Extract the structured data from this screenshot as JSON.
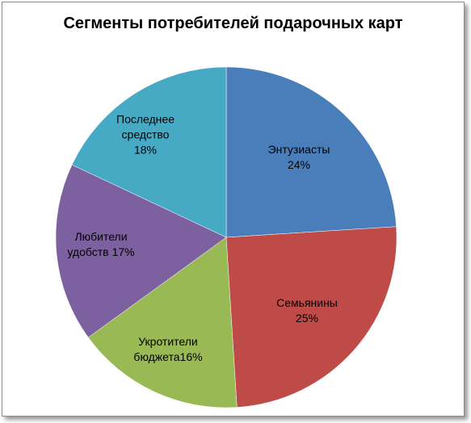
{
  "chart_data": {
    "type": "pie",
    "title": "Сегменты потребителей подарочных карт",
    "categories": [
      "Энтузиасты",
      "Семьянины",
      "Укротители бюджета",
      "Любители удобств",
      "Последнее средство"
    ],
    "values": [
      24,
      25,
      16,
      17,
      18
    ],
    "value_labels": [
      "24%",
      "25%",
      "16%",
      "17%",
      "18%"
    ],
    "colors": [
      "#4a7ebb",
      "#be4b48",
      "#98b954",
      "#7d60a0",
      "#46aac5"
    ]
  }
}
